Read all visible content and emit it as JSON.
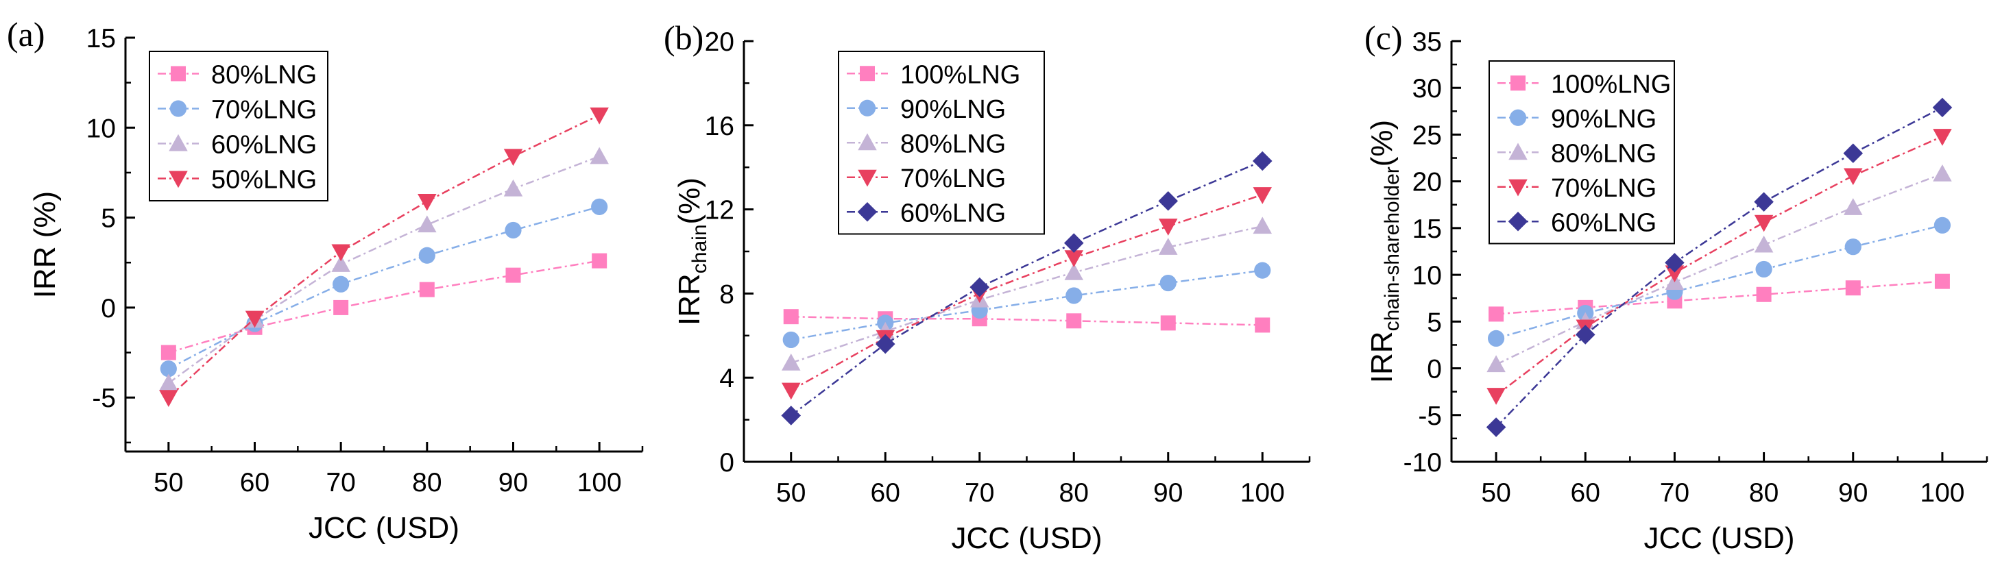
{
  "figure": {
    "marker_colors": {
      "square": "#ff7fbf",
      "circle": "#86aee8",
      "up-triangle": "#c4b3d6",
      "down-triangle": "#e8405f",
      "diamond": "#3c3896"
    }
  },
  "chart_data": [
    {
      "type": "line",
      "panel_label": "(a)",
      "xlabel": "JCC (USD)",
      "ylabel": "IRR (%)",
      "ylabel_sub": "",
      "ylabel_suffix": "",
      "x": [
        50,
        60,
        70,
        80,
        90,
        100
      ],
      "xlim": [
        45,
        105
      ],
      "ylim": [
        -8,
        15
      ],
      "xticks": [
        50,
        60,
        70,
        80,
        90,
        100
      ],
      "yticks": [
        -5,
        0,
        5,
        10,
        15
      ],
      "legend_position": "top-left",
      "series": [
        {
          "name": "80%LNG",
          "marker": "square",
          "color": "#ff7fbf",
          "values": [
            -2.5,
            -1.1,
            0.0,
            1.0,
            1.8,
            2.6
          ]
        },
        {
          "name": "70%LNG",
          "marker": "circle",
          "color": "#86aee8",
          "values": [
            -3.4,
            -0.9,
            1.3,
            2.9,
            4.3,
            5.6
          ]
        },
        {
          "name": "60%LNG",
          "marker": "up-triangle",
          "color": "#c4b3d6",
          "values": [
            -4.2,
            -0.7,
            2.4,
            4.6,
            6.6,
            8.4
          ]
        },
        {
          "name": "50%LNG",
          "marker": "down-triangle",
          "color": "#e8405f",
          "values": [
            -5.0,
            -0.6,
            3.1,
            5.9,
            8.4,
            10.7
          ]
        }
      ]
    },
    {
      "type": "line",
      "panel_label": "(b)",
      "xlabel": "JCC (USD)",
      "ylabel": "IRR",
      "ylabel_sub": "chain",
      "ylabel_suffix": "(%)",
      "x": [
        50,
        60,
        70,
        80,
        90,
        100
      ],
      "xlim": [
        45,
        105
      ],
      "ylim": [
        0,
        20
      ],
      "xticks": [
        50,
        60,
        70,
        80,
        90,
        100
      ],
      "yticks": [
        0,
        4,
        8,
        12,
        16,
        20
      ],
      "legend_position": "top-left",
      "series": [
        {
          "name": "100%LNG",
          "marker": "square",
          "color": "#ff7fbf",
          "values": [
            6.9,
            6.8,
            6.8,
            6.7,
            6.6,
            6.5
          ]
        },
        {
          "name": "90%LNG",
          "marker": "circle",
          "color": "#86aee8",
          "values": [
            5.8,
            6.6,
            7.2,
            7.9,
            8.5,
            9.1
          ]
        },
        {
          "name": "80%LNG",
          "marker": "up-triangle",
          "color": "#c4b3d6",
          "values": [
            4.7,
            6.2,
            7.7,
            9.0,
            10.2,
            11.2
          ]
        },
        {
          "name": "70%LNG",
          "marker": "down-triangle",
          "color": "#e8405f",
          "values": [
            3.4,
            5.9,
            8.0,
            9.7,
            11.2,
            12.7
          ]
        },
        {
          "name": "60%LNG",
          "marker": "diamond",
          "color": "#3c3896",
          "values": [
            2.2,
            5.6,
            8.3,
            10.4,
            12.4,
            14.3
          ]
        }
      ]
    },
    {
      "type": "line",
      "panel_label": "(c)",
      "xlabel": "JCC (USD)",
      "ylabel": "IRR",
      "ylabel_sub": "chain-shareholder",
      "ylabel_suffix": "(%)",
      "x": [
        50,
        60,
        70,
        80,
        90,
        100
      ],
      "xlim": [
        45,
        105
      ],
      "ylim": [
        -10,
        35
      ],
      "xticks": [
        50,
        60,
        70,
        80,
        90,
        100
      ],
      "yticks": [
        -10,
        -5,
        0,
        5,
        10,
        15,
        20,
        25,
        30,
        35
      ],
      "legend_position": "top-left",
      "series": [
        {
          "name": "100%LNG",
          "marker": "square",
          "color": "#ff7fbf",
          "values": [
            5.8,
            6.5,
            7.2,
            7.9,
            8.6,
            9.3
          ]
        },
        {
          "name": "90%LNG",
          "marker": "circle",
          "color": "#86aee8",
          "values": [
            3.2,
            5.9,
            8.2,
            10.6,
            13.0,
            15.3
          ]
        },
        {
          "name": "80%LNG",
          "marker": "up-triangle",
          "color": "#c4b3d6",
          "values": [
            0.4,
            5.0,
            9.2,
            13.2,
            17.2,
            20.8
          ]
        },
        {
          "name": "70%LNG",
          "marker": "down-triangle",
          "color": "#e8405f",
          "values": [
            -2.9,
            4.4,
            10.2,
            15.6,
            20.6,
            24.8
          ]
        },
        {
          "name": "60%LNG",
          "marker": "diamond",
          "color": "#3c3896",
          "values": [
            -6.3,
            3.6,
            11.3,
            17.8,
            23.0,
            27.9
          ]
        }
      ]
    }
  ]
}
